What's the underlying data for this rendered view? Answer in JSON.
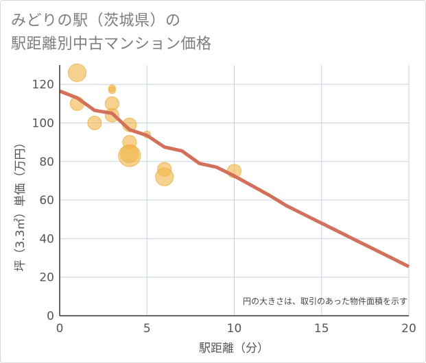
{
  "title_lines": [
    "みどりの駅（茨城県）の",
    "駅距離別中古マンション価格"
  ],
  "chart_data": {
    "type": "scatter",
    "xlabel": "駅距離（分）",
    "ylabel": "坪（3.3㎡）単価（万円）",
    "xlim": [
      0,
      20
    ],
    "ylim": [
      0,
      130
    ],
    "xticks": [
      0,
      5,
      10,
      15,
      20
    ],
    "yticks": [
      0,
      20,
      40,
      60,
      80,
      100,
      120
    ],
    "grid": true,
    "note": "円の大きさは、取引のあった物件面積を示す",
    "bubbles": [
      {
        "x": 1,
        "y": 126,
        "size": 3
      },
      {
        "x": 1,
        "y": 110,
        "size": 2
      },
      {
        "x": 2,
        "y": 100,
        "size": 2
      },
      {
        "x": 3,
        "y": 118,
        "size": 1
      },
      {
        "x": 3,
        "y": 117,
        "size": 1
      },
      {
        "x": 3,
        "y": 110,
        "size": 2
      },
      {
        "x": 3,
        "y": 104,
        "size": 2
      },
      {
        "x": 4,
        "y": 99,
        "size": 2
      },
      {
        "x": 4,
        "y": 90,
        "size": 2
      },
      {
        "x": 4,
        "y": 84,
        "size": 3
      },
      {
        "x": 4,
        "y": 83,
        "size": 4
      },
      {
        "x": 5,
        "y": 94,
        "size": 1
      },
      {
        "x": 6,
        "y": 76,
        "size": 2
      },
      {
        "x": 6,
        "y": 72,
        "size": 3
      },
      {
        "x": 10,
        "y": 75,
        "size": 2
      }
    ],
    "trend_line": {
      "x": [
        0,
        1,
        2,
        3,
        4,
        5,
        6,
        7,
        8,
        9,
        10,
        11,
        12,
        13,
        14,
        15,
        16,
        17,
        18,
        19,
        20
      ],
      "y": [
        116.5,
        113,
        106.5,
        105,
        96.5,
        93.5,
        87.5,
        85.5,
        79,
        77,
        72.5,
        67.5,
        62.5,
        57,
        52.5,
        48,
        43.5,
        39,
        34.5,
        30,
        25.5
      ]
    },
    "colors": {
      "bubble": "#f0b44a",
      "trend": "#d4705a",
      "grid": "#c8d3df",
      "axis": "#333333",
      "text": "#555555",
      "title": "#7d7d7d"
    }
  }
}
